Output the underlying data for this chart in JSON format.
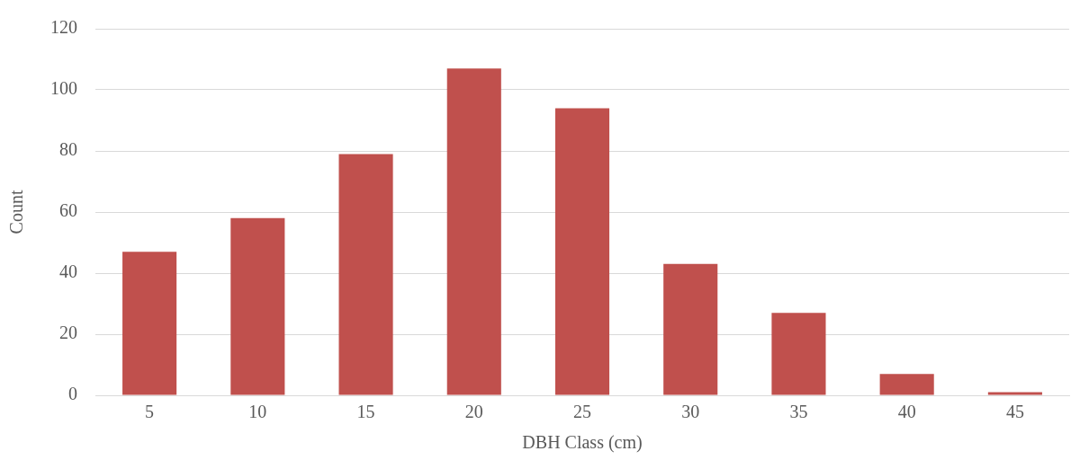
{
  "chart_data": {
    "type": "bar",
    "xlabel": "DBH Class (cm)",
    "ylabel": "Count",
    "categories": [
      "5",
      "10",
      "15",
      "20",
      "25",
      "30",
      "35",
      "40",
      "45"
    ],
    "values": [
      47,
      58,
      79,
      107,
      94,
      43,
      27,
      7,
      1
    ],
    "color": "#c0504d",
    "ylim": [
      0,
      120
    ],
    "yticks": [
      0,
      20,
      40,
      60,
      80,
      100,
      120
    ],
    "grid": "y"
  }
}
